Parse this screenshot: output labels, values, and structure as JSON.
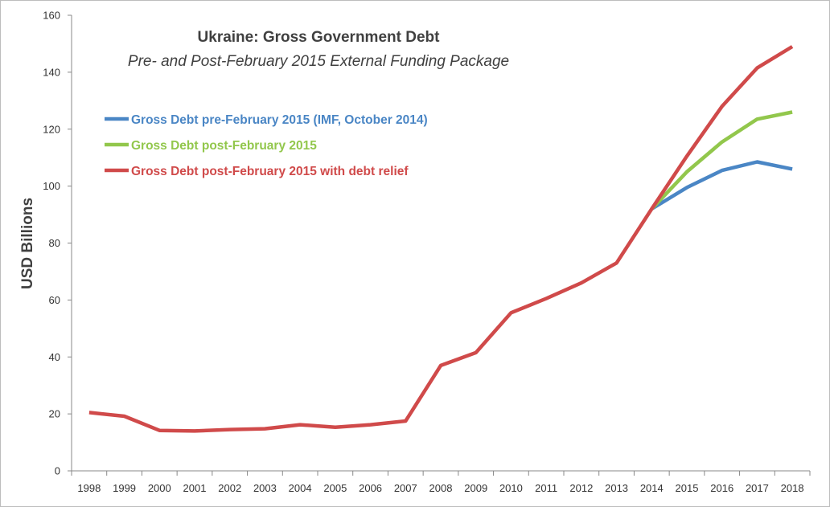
{
  "chart_data": {
    "type": "line",
    "title": "Ukraine: Gross Government Debt",
    "subtitle": "Pre- and Post-February 2015 External Funding Package",
    "ylabel": "USD Billions",
    "xlabel": "",
    "ylim": [
      0,
      160
    ],
    "yticks": [
      0,
      20,
      40,
      60,
      80,
      100,
      120,
      140,
      160
    ],
    "categories": [
      "1998",
      "1999",
      "2000",
      "2001",
      "2002",
      "2003",
      "2004",
      "2005",
      "2006",
      "2007",
      "2008",
      "2009",
      "2010",
      "2011",
      "2012",
      "2013",
      "2014",
      "2015",
      "2016",
      "2017",
      "2018"
    ],
    "grid": false,
    "legend_position": "top-left",
    "series": [
      {
        "name": "Gross Debt pre-February 2015 (IMF, October 2014)",
        "color": "#4a86c5",
        "values": [
          null,
          null,
          null,
          null,
          null,
          null,
          null,
          null,
          null,
          null,
          null,
          null,
          null,
          null,
          null,
          null,
          92,
          99.5,
          105.5,
          108.5,
          106
        ]
      },
      {
        "name": "Gross Debt post-February 2015",
        "color": "#92c74c",
        "values": [
          null,
          null,
          null,
          null,
          null,
          null,
          null,
          null,
          null,
          null,
          null,
          null,
          null,
          null,
          null,
          null,
          92,
          105,
          115.5,
          123.5,
          126
        ]
      },
      {
        "name": "Gross Debt post-February 2015 with debt relief",
        "color": "#d04a4a",
        "values": [
          20.5,
          19.2,
          14.2,
          14,
          14.5,
          14.8,
          16.2,
          15.3,
          16.2,
          17.5,
          37,
          41.5,
          55.5,
          60.5,
          66,
          73,
          92,
          110.5,
          128,
          141.5,
          149
        ]
      }
    ]
  }
}
